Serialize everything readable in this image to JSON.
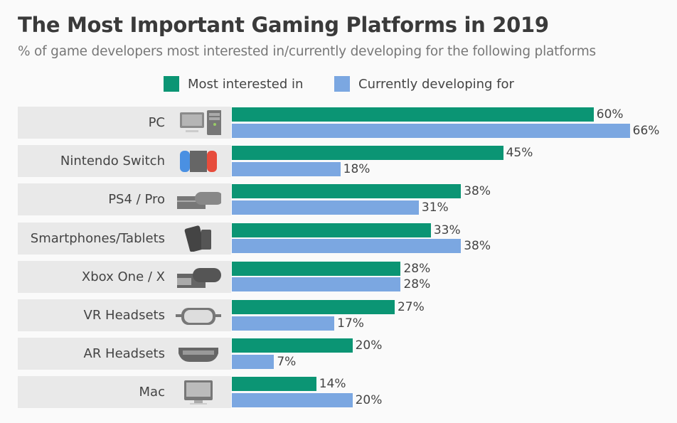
{
  "title": "The Most Important Gaming Platforms in 2019",
  "subtitle": "% of game developers most interested in/currently developing for the following platforms",
  "colors": {
    "interested": "#0b9574",
    "developing": "#7ba7e1"
  },
  "chart_data": {
    "type": "bar",
    "orientation": "horizontal",
    "categories": [
      "PC",
      "Nintendo Switch",
      "PS4 / Pro",
      "Smartphones/Tablets",
      "Xbox One / X",
      "VR Headsets",
      "AR Headsets",
      "Mac"
    ],
    "icons": [
      "pc-icon",
      "nintendo-switch-icon",
      "ps4-icon",
      "smartphone-tablet-icon",
      "xbox-icon",
      "vr-headset-icon",
      "ar-headset-icon",
      "mac-icon"
    ],
    "series": [
      {
        "name": "Most interested in",
        "values": [
          60,
          45,
          38,
          33,
          28,
          27,
          20,
          14
        ]
      },
      {
        "name": "Currently developing for",
        "values": [
          66,
          18,
          31,
          38,
          28,
          17,
          7,
          20
        ]
      }
    ],
    "value_suffix": "%",
    "legend": "top",
    "grid": false
  }
}
